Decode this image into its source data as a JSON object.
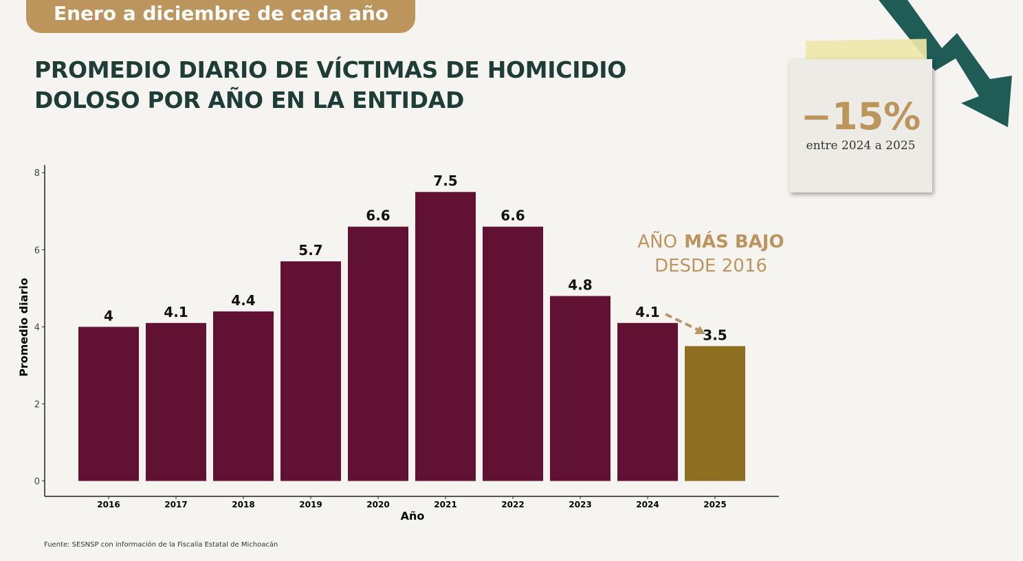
{
  "header": "Enero a diciembre de cada año",
  "note": {
    "headline": "−15%",
    "text": "entre 2024 a 2025"
  },
  "chart_data": {
    "type": "bar",
    "title": [
      "PROMEDIO DIARIO DE VÍCTIMAS DE HOMICIDIO",
      "DOLOSO POR AÑO EN LA ENTIDAD"
    ],
    "x_label": "Año",
    "y_label": "Promedio diario",
    "categories": [
      "2016",
      "2017",
      "2018",
      "2019",
      "2020",
      "2021",
      "2022",
      "2023",
      "2024",
      "2025"
    ],
    "values": [
      4,
      4.1,
      4.4,
      5.7,
      6.6,
      7.5,
      6.6,
      4.8,
      4.1,
      3.5
    ],
    "colors": [
      "#611232",
      "#611232",
      "#611232",
      "#611232",
      "#611232",
      "#611232",
      "#611232",
      "#611232",
      "#611232",
      "#8f6f22"
    ],
    "ylim": [
      -0.4,
      8.2
    ],
    "yticks": [
      0,
      2,
      4,
      6,
      8
    ],
    "annotation": {
      "normal": "AÑO",
      "bold": "MÁS BAJO",
      "line2": "DESDE 2016"
    },
    "source": "Fuente: SESNSP con información de la Fiscalía Estatal de Michoacán"
  }
}
